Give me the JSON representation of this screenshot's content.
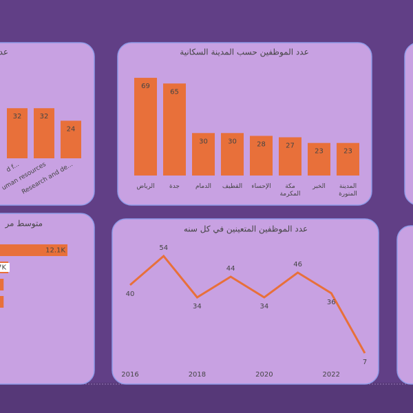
{
  "chart_data": [
    {
      "type": "bar",
      "title": "عد",
      "categories": [
        "d f...",
        "uman resources",
        "Research and de..."
      ],
      "values": [
        32,
        32,
        24
      ],
      "color": "#e8703a",
      "ylim": [
        0,
        40
      ]
    },
    {
      "type": "bar",
      "title": "عدد الموظفين حسب المدينة السكانية",
      "categories": [
        "الرياض",
        "جدة",
        "الدمام",
        "القطيف",
        "الإحساء",
        "مكة المكرمة",
        "الخبر",
        "المدينة المنورة"
      ],
      "values": [
        69,
        65,
        30,
        30,
        28,
        27,
        23,
        23
      ],
      "color": "#e8703a",
      "ylim": [
        0,
        70
      ]
    },
    {
      "type": "hbar",
      "title": "متوسط مر",
      "values": [
        12100,
        7000,
        6600,
        6600
      ],
      "value_labels": [
        "12.1K",
        "7K",
        null,
        null
      ],
      "color": "#e8703a",
      "xlim": [
        0,
        14000
      ]
    },
    {
      "type": "line",
      "title": "عدد الموظفين المتعينين في كل سنه",
      "x": [
        2016,
        2017,
        2018,
        2019,
        2020,
        2021,
        2022,
        2023
      ],
      "values": [
        40,
        54,
        34,
        44,
        34,
        46,
        36,
        7
      ],
      "color": "#e8703a",
      "xlim": [
        2016,
        2023
      ],
      "xticks": [
        2016,
        2018,
        2020,
        2022
      ],
      "ylim": [
        0,
        60
      ]
    }
  ]
}
